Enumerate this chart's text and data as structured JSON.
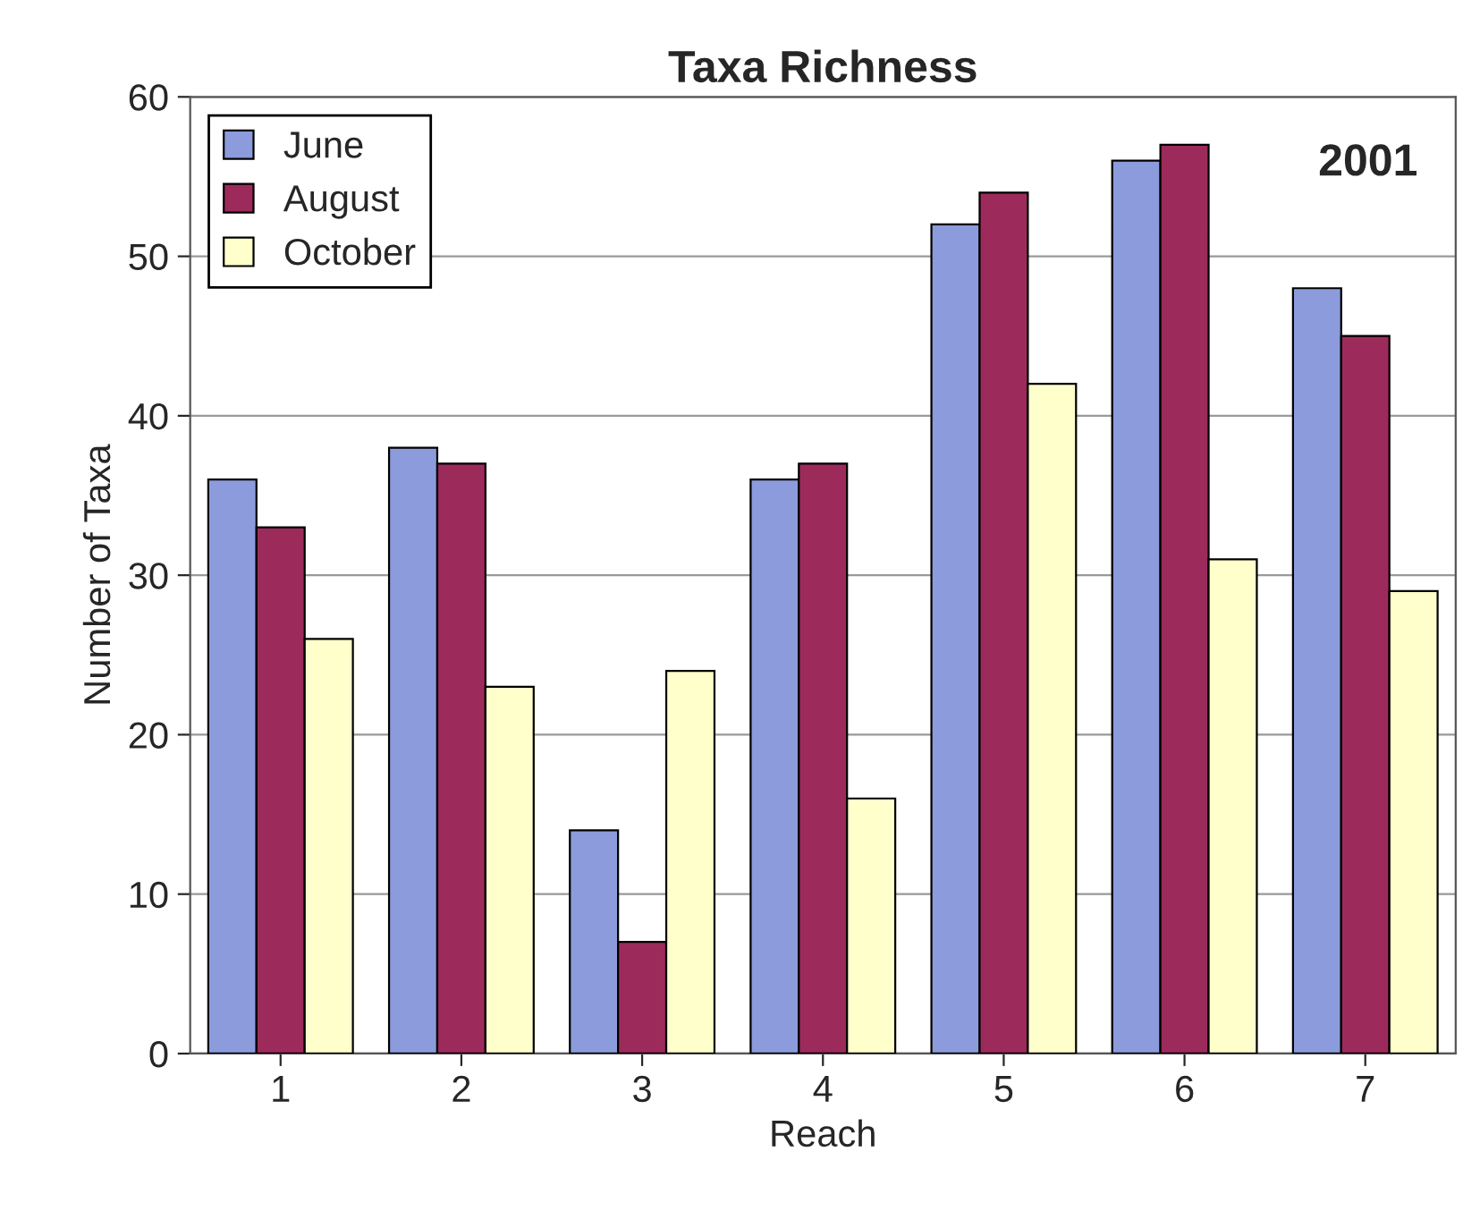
{
  "chart_data": {
    "type": "bar",
    "title": "Taxa Richness",
    "xlabel": "Reach",
    "ylabel": "Number of Taxa",
    "categories": [
      "1",
      "2",
      "3",
      "4",
      "5",
      "6",
      "7"
    ],
    "series": [
      {
        "name": "June",
        "color": "#8c9bdb",
        "values": [
          36,
          38,
          14,
          36,
          52,
          56,
          48
        ]
      },
      {
        "name": "August",
        "color": "#9c2b5c",
        "values": [
          33,
          37,
          7,
          37,
          54,
          57,
          45
        ]
      },
      {
        "name": "October",
        "color": "#ffffcc",
        "values": [
          26,
          23,
          24,
          16,
          42,
          31,
          29
        ]
      }
    ],
    "ylim": [
      0,
      60
    ],
    "yticks": [
      0,
      10,
      20,
      30,
      40,
      50,
      60
    ],
    "grid": "y",
    "legend": "top left",
    "annotations": [
      "2001"
    ]
  }
}
